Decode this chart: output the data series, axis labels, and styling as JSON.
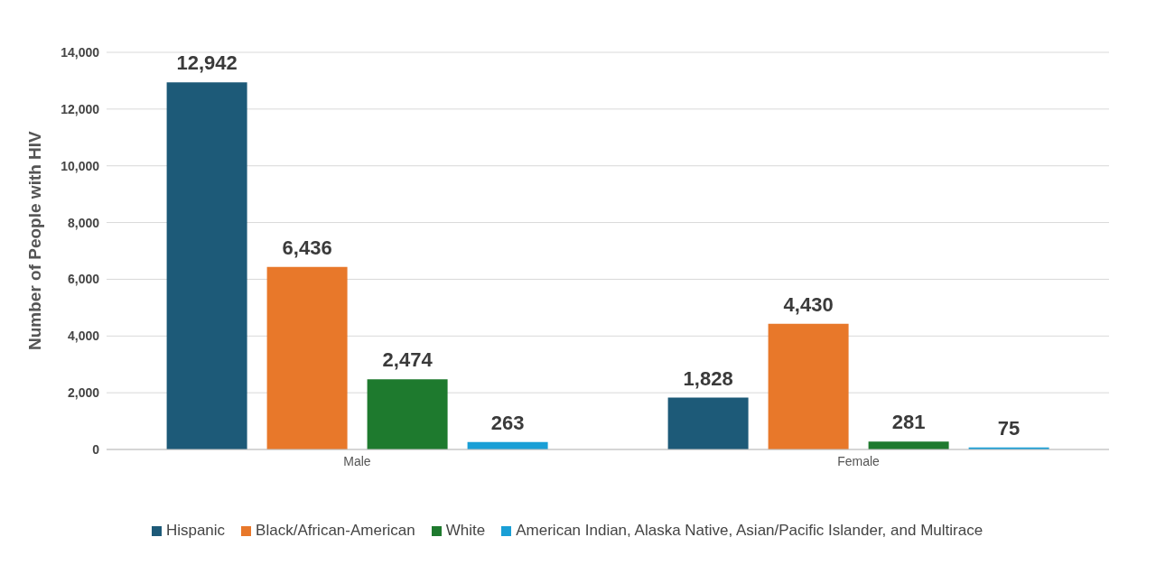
{
  "chart_data": {
    "type": "bar",
    "ylabel": "Number of People with HIV",
    "categories": [
      "Male",
      "Female"
    ],
    "series": [
      {
        "name": "Hispanic",
        "color": "#1d5a78",
        "values": [
          12942,
          1828
        ],
        "value_labels": [
          "12,942",
          "1,828"
        ]
      },
      {
        "name": "Black/African-American",
        "color": "#e8782a",
        "values": [
          6436,
          4430
        ],
        "value_labels": [
          "6,436",
          "4,430"
        ]
      },
      {
        "name": "White",
        "color": "#1e7a2e",
        "values": [
          2474,
          281
        ],
        "value_labels": [
          "2,474",
          "281"
        ]
      },
      {
        "name": "American Indian, Alaska Native, Asian/Pacific Islander, and Multirace",
        "color": "#1a9fd6",
        "values": [
          263,
          75
        ],
        "value_labels": [
          "263",
          "75"
        ]
      }
    ],
    "ylim": [
      0,
      14000
    ],
    "yticks": [
      0,
      {
        "value": 2000,
        "label": "2,000"
      },
      {
        "value": 4000,
        "label": "4,000"
      },
      {
        "value": 6000,
        "label": "6,000"
      },
      {
        "value": 8000,
        "label": "8,000"
      },
      {
        "value": 10000,
        "label": "10,000"
      },
      {
        "value": 12000,
        "label": "12,000"
      },
      {
        "value": 14000,
        "label": "14,000"
      }
    ],
    "grid": "y",
    "legend": "bottom"
  }
}
